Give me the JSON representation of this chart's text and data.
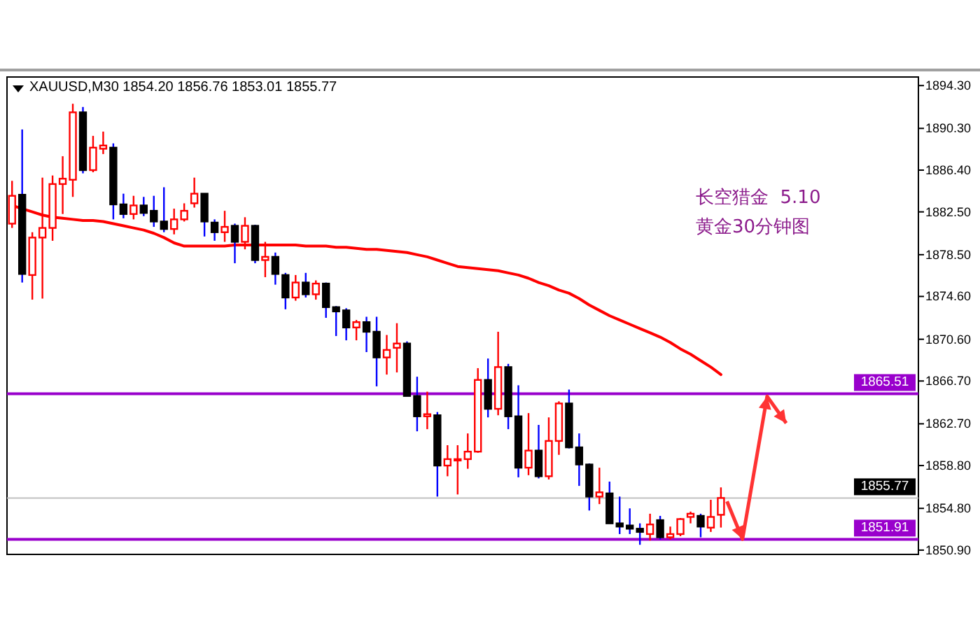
{
  "chart_data": {
    "type": "candlestick",
    "title": "XAUUSD,M30 1854.20 1856.76 1853.01 1855.77",
    "annotations": [
      "长空猎金  5.10",
      "黄金30分钟图"
    ],
    "categories": [
      null,
      null,
      null,
      null,
      null,
      null,
      null,
      null,
      null,
      null,
      null,
      null,
      null,
      null,
      null,
      null,
      null,
      null,
      null,
      null,
      null,
      null,
      null,
      null,
      null,
      null,
      null,
      null,
      null,
      null,
      null,
      null,
      null,
      null,
      null,
      null,
      null,
      null,
      null,
      null,
      null,
      null,
      null,
      null,
      null,
      null,
      null,
      null,
      null,
      null,
      null,
      null,
      null,
      null,
      null,
      null,
      null,
      null,
      null,
      null,
      null,
      null,
      null,
      null,
      null,
      null,
      null,
      null,
      null,
      null,
      null,
      null,
      null,
      null,
      null,
      null,
      null,
      null,
      null,
      null,
      null,
      null,
      null,
      null,
      null,
      null,
      null,
      null,
      null,
      null
    ],
    "ohlc": [
      [
        1881.4,
        1885.4,
        1881.0,
        1884.0
      ],
      [
        1884.1,
        1890.2,
        1875.9,
        1876.7
      ],
      [
        1876.6,
        1880.6,
        1874.3,
        1880.1
      ],
      [
        1880.1,
        1885.7,
        1874.4,
        1881.0
      ],
      [
        1881.0,
        1885.9,
        1879.8,
        1885.1
      ],
      [
        1885.1,
        1887.7,
        1882.3,
        1885.6
      ],
      [
        1885.5,
        1892.6,
        1883.9,
        1891.8
      ],
      [
        1891.8,
        1892.3,
        1886.1,
        1886.4
      ],
      [
        1886.4,
        1889.6,
        1886.2,
        1888.5
      ],
      [
        1888.4,
        1890.0,
        1887.9,
        1888.7
      ],
      [
        1888.5,
        1888.9,
        1881.8,
        1883.2
      ],
      [
        1883.2,
        1884.2,
        1881.9,
        1882.3
      ],
      [
        1882.3,
        1884.0,
        1881.8,
        1883.1
      ],
      [
        1883.1,
        1883.9,
        1882.1,
        1882.4
      ],
      [
        1882.6,
        1884.0,
        1881.1,
        1881.6
      ],
      [
        1881.6,
        1884.8,
        1880.6,
        1880.9
      ],
      [
        1880.9,
        1882.8,
        1880.4,
        1881.8
      ],
      [
        1881.8,
        1883.3,
        1881.6,
        1882.6
      ],
      [
        1883.3,
        1885.7,
        1882.9,
        1884.2
      ],
      [
        1884.2,
        1884.2,
        1880.2,
        1881.6
      ],
      [
        1881.5,
        1881.8,
        1879.8,
        1880.6
      ],
      [
        1880.6,
        1882.6,
        1879.7,
        1881.1
      ],
      [
        1881.2,
        1881.4,
        1877.7,
        1879.7
      ],
      [
        1879.7,
        1882.0,
        1879.0,
        1881.2
      ],
      [
        1881.2,
        1881.3,
        1877.7,
        1878.0
      ],
      [
        1878.0,
        1879.7,
        1876.4,
        1878.3
      ],
      [
        1878.3,
        1878.7,
        1875.7,
        1876.7
      ],
      [
        1876.6,
        1876.8,
        1873.4,
        1874.5
      ],
      [
        1874.5,
        1876.6,
        1874.2,
        1875.9
      ],
      [
        1875.9,
        1876.8,
        1874.5,
        1874.8
      ],
      [
        1874.8,
        1876.1,
        1874.3,
        1875.8
      ],
      [
        1875.8,
        1875.9,
        1872.6,
        1873.6
      ],
      [
        1873.6,
        1873.7,
        1870.9,
        1873.2
      ],
      [
        1873.3,
        1873.5,
        1870.5,
        1871.7
      ],
      [
        1871.7,
        1872.4,
        1870.5,
        1872.2
      ],
      [
        1872.2,
        1872.7,
        1869.4,
        1871.3
      ],
      [
        1871.3,
        1872.7,
        1866.2,
        1868.9
      ],
      [
        1868.9,
        1871.0,
        1867.3,
        1869.6
      ],
      [
        1869.8,
        1872.1,
        1867.5,
        1870.2
      ],
      [
        1870.2,
        1870.4,
        1865.3,
        1865.3
      ],
      [
        1865.3,
        1867.1,
        1862.0,
        1863.4
      ],
      [
        1863.4,
        1865.7,
        1862.2,
        1863.6
      ],
      [
        1863.5,
        1863.8,
        1855.9,
        1858.8
      ],
      [
        1858.8,
        1860.7,
        1857.8,
        1859.4
      ],
      [
        1859.3,
        1860.7,
        1856.1,
        1859.4
      ],
      [
        1859.4,
        1861.8,
        1858.5,
        1860.1
      ],
      [
        1860.1,
        1867.9,
        1860.0,
        1866.8
      ],
      [
        1866.8,
        1868.8,
        1863.3,
        1864.1
      ],
      [
        1864.1,
        1871.3,
        1863.5,
        1868.0
      ],
      [
        1868.0,
        1868.3,
        1862.2,
        1863.4
      ],
      [
        1863.4,
        1866.3,
        1857.7,
        1858.6
      ],
      [
        1858.6,
        1863.7,
        1857.9,
        1860.2
      ],
      [
        1860.2,
        1862.6,
        1857.6,
        1857.8
      ],
      [
        1857.8,
        1863.3,
        1857.5,
        1861.1
      ],
      [
        1861.1,
        1864.8,
        1859.8,
        1864.6
      ],
      [
        1864.6,
        1865.9,
        1860.4,
        1860.5
      ],
      [
        1860.5,
        1861.8,
        1856.9,
        1858.9
      ],
      [
        1858.9,
        1859.0,
        1854.6,
        1855.9
      ],
      [
        1855.9,
        1858.6,
        1855.2,
        1856.3
      ],
      [
        1856.2,
        1857.3,
        1853.4,
        1853.4
      ],
      [
        1853.4,
        1855.9,
        1852.4,
        1853.1
      ],
      [
        1853.2,
        1854.8,
        1852.4,
        1852.9
      ],
      [
        1852.9,
        1853.4,
        1851.4,
        1852.6
      ],
      [
        1852.4,
        1854.3,
        1851.8,
        1853.3
      ],
      [
        1853.7,
        1854.1,
        1851.9,
        1852.1
      ],
      [
        1852.1,
        1853.1,
        1851.9,
        1852.4
      ],
      [
        1852.4,
        1853.9,
        1852.2,
        1853.8
      ],
      [
        1854.0,
        1854.5,
        1853.4,
        1854.3
      ],
      [
        1854.1,
        1854.3,
        1852.1,
        1853.1
      ],
      [
        1853.0,
        1855.6,
        1852.6,
        1854.0
      ],
      [
        1854.2,
        1856.76,
        1853.01,
        1855.77
      ],
      null,
      null,
      null,
      null,
      null,
      null,
      null,
      null,
      null,
      null,
      null,
      null,
      null,
      null,
      null,
      null,
      null,
      null,
      null
    ],
    "series": [
      {
        "type": "line",
        "color": "#ff0000",
        "values": [
          1883.1,
          1882.8,
          1882.5,
          1882.2,
          1882.0,
          1881.9,
          1881.8,
          1881.7,
          1881.7,
          1881.6,
          1881.4,
          1881.2,
          1881.0,
          1880.8,
          1880.5,
          1880.1,
          1879.6,
          1879.3,
          1879.3,
          1879.3,
          1879.3,
          1879.3,
          1879.4,
          1879.4,
          1879.4,
          1879.4,
          1879.4,
          1879.4,
          1879.4,
          1879.3,
          1879.3,
          1879.3,
          1879.2,
          1879.2,
          1879.1,
          1879.0,
          1879.0,
          1878.9,
          1878.8,
          1878.7,
          1878.5,
          1878.3,
          1878.0,
          1877.7,
          1877.4,
          1877.3,
          1877.2,
          1877.1,
          1877.0,
          1876.8,
          1876.6,
          1876.3,
          1875.9,
          1875.6,
          1875.2,
          1874.9,
          1874.4,
          1873.8,
          1873.3,
          1872.8,
          1872.4,
          1872.0,
          1871.6,
          1871.2,
          1870.8,
          1870.3,
          1869.7,
          1869.2,
          1868.6,
          1868.0,
          1867.3,
          null,
          null,
          null,
          null,
          null,
          null,
          null,
          null,
          null,
          null,
          null,
          null,
          null,
          null,
          null,
          null,
          null,
          null,
          null
        ]
      }
    ],
    "ylim": [
      1850.5,
      1895.1
    ],
    "yticks": [
      {
        "value": 1894.3,
        "label": "1894.30"
      },
      {
        "value": 1890.3,
        "label": "1890.30"
      },
      {
        "value": 1886.4,
        "label": "1886.40"
      },
      {
        "value": 1882.5,
        "label": "1882.50"
      },
      {
        "value": 1878.5,
        "label": "1878.50"
      },
      {
        "value": 1874.6,
        "label": "1874.60"
      },
      {
        "value": 1870.6,
        "label": "1870.60"
      },
      {
        "value": 1866.7,
        "label": "1866.70"
      },
      {
        "value": 1862.7,
        "label": "1862.70"
      },
      {
        "value": 1858.8,
        "label": "1858.80"
      },
      {
        "value": 1854.8,
        "label": "1854.80"
      },
      {
        "value": 1850.9,
        "label": "1850.90"
      }
    ],
    "ref_lines": [
      {
        "axis": "y",
        "value": 1865.51,
        "label": "1865.51",
        "color": "#9900cc"
      },
      {
        "axis": "y",
        "value": 1855.77,
        "label": "1855.77",
        "color": "#c0c0c0"
      },
      {
        "axis": "y",
        "value": 1851.91,
        "label": "1851.91",
        "color": "#9900cc"
      }
    ]
  }
}
